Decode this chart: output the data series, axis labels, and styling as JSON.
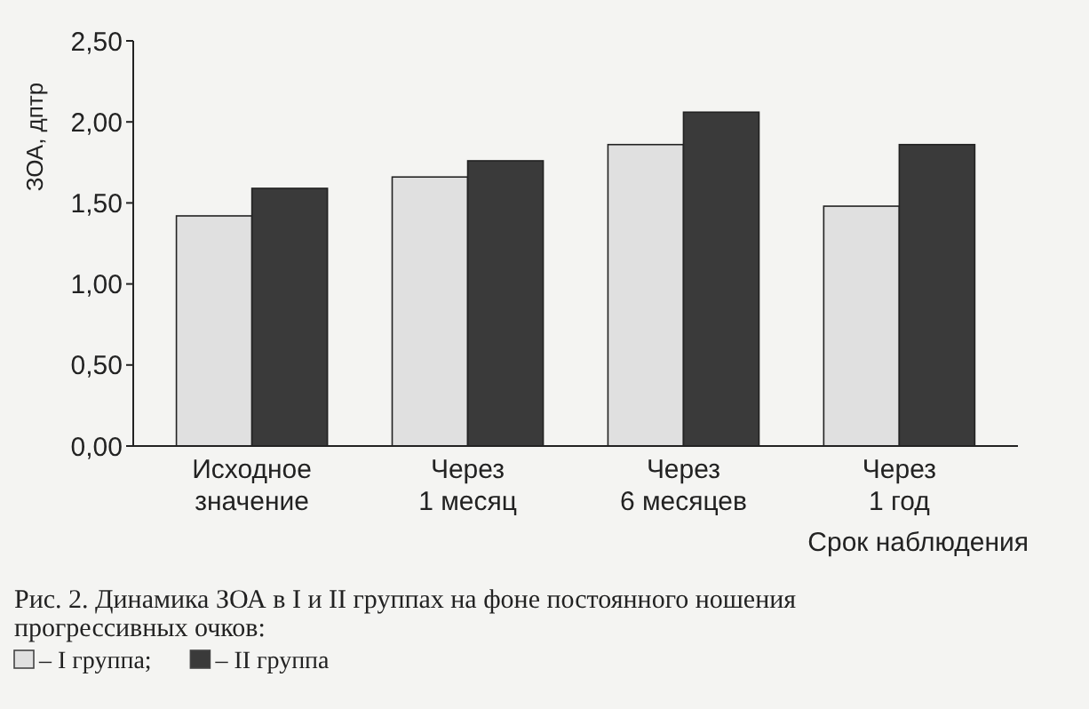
{
  "chart_data": {
    "type": "bar",
    "title": "Рис. 2. Динамика ЗОА в I и II группах на фоне постоянного ношения прогрессивных очков:",
    "xlabel": "Срок наблюдения",
    "ylabel": "ЗОА, дптр",
    "categories": [
      "Исходное\nзначение",
      "Через\n1 месяц",
      "Через\n6 месяцев",
      "Через\n1 год"
    ],
    "series": [
      {
        "name": "– I группа;",
        "color": "#e0e0e0",
        "values": [
          1.42,
          1.66,
          1.86,
          1.48
        ]
      },
      {
        "name": "– II группа",
        "color": "#3a3a3a",
        "values": [
          1.59,
          1.76,
          2.06,
          1.86
        ]
      }
    ],
    "ylim": [
      0,
      2.5
    ],
    "yticks": [
      {
        "value": 0,
        "label": "0,00"
      },
      {
        "value": 0.5,
        "label": "0,50"
      },
      {
        "value": 1,
        "label": "1,00"
      },
      {
        "value": 1.5,
        "label": "1,50"
      },
      {
        "value": 2,
        "label": "2,00"
      },
      {
        "value": 2.5,
        "label": "2,50"
      }
    ],
    "legend": "bottom left"
  }
}
